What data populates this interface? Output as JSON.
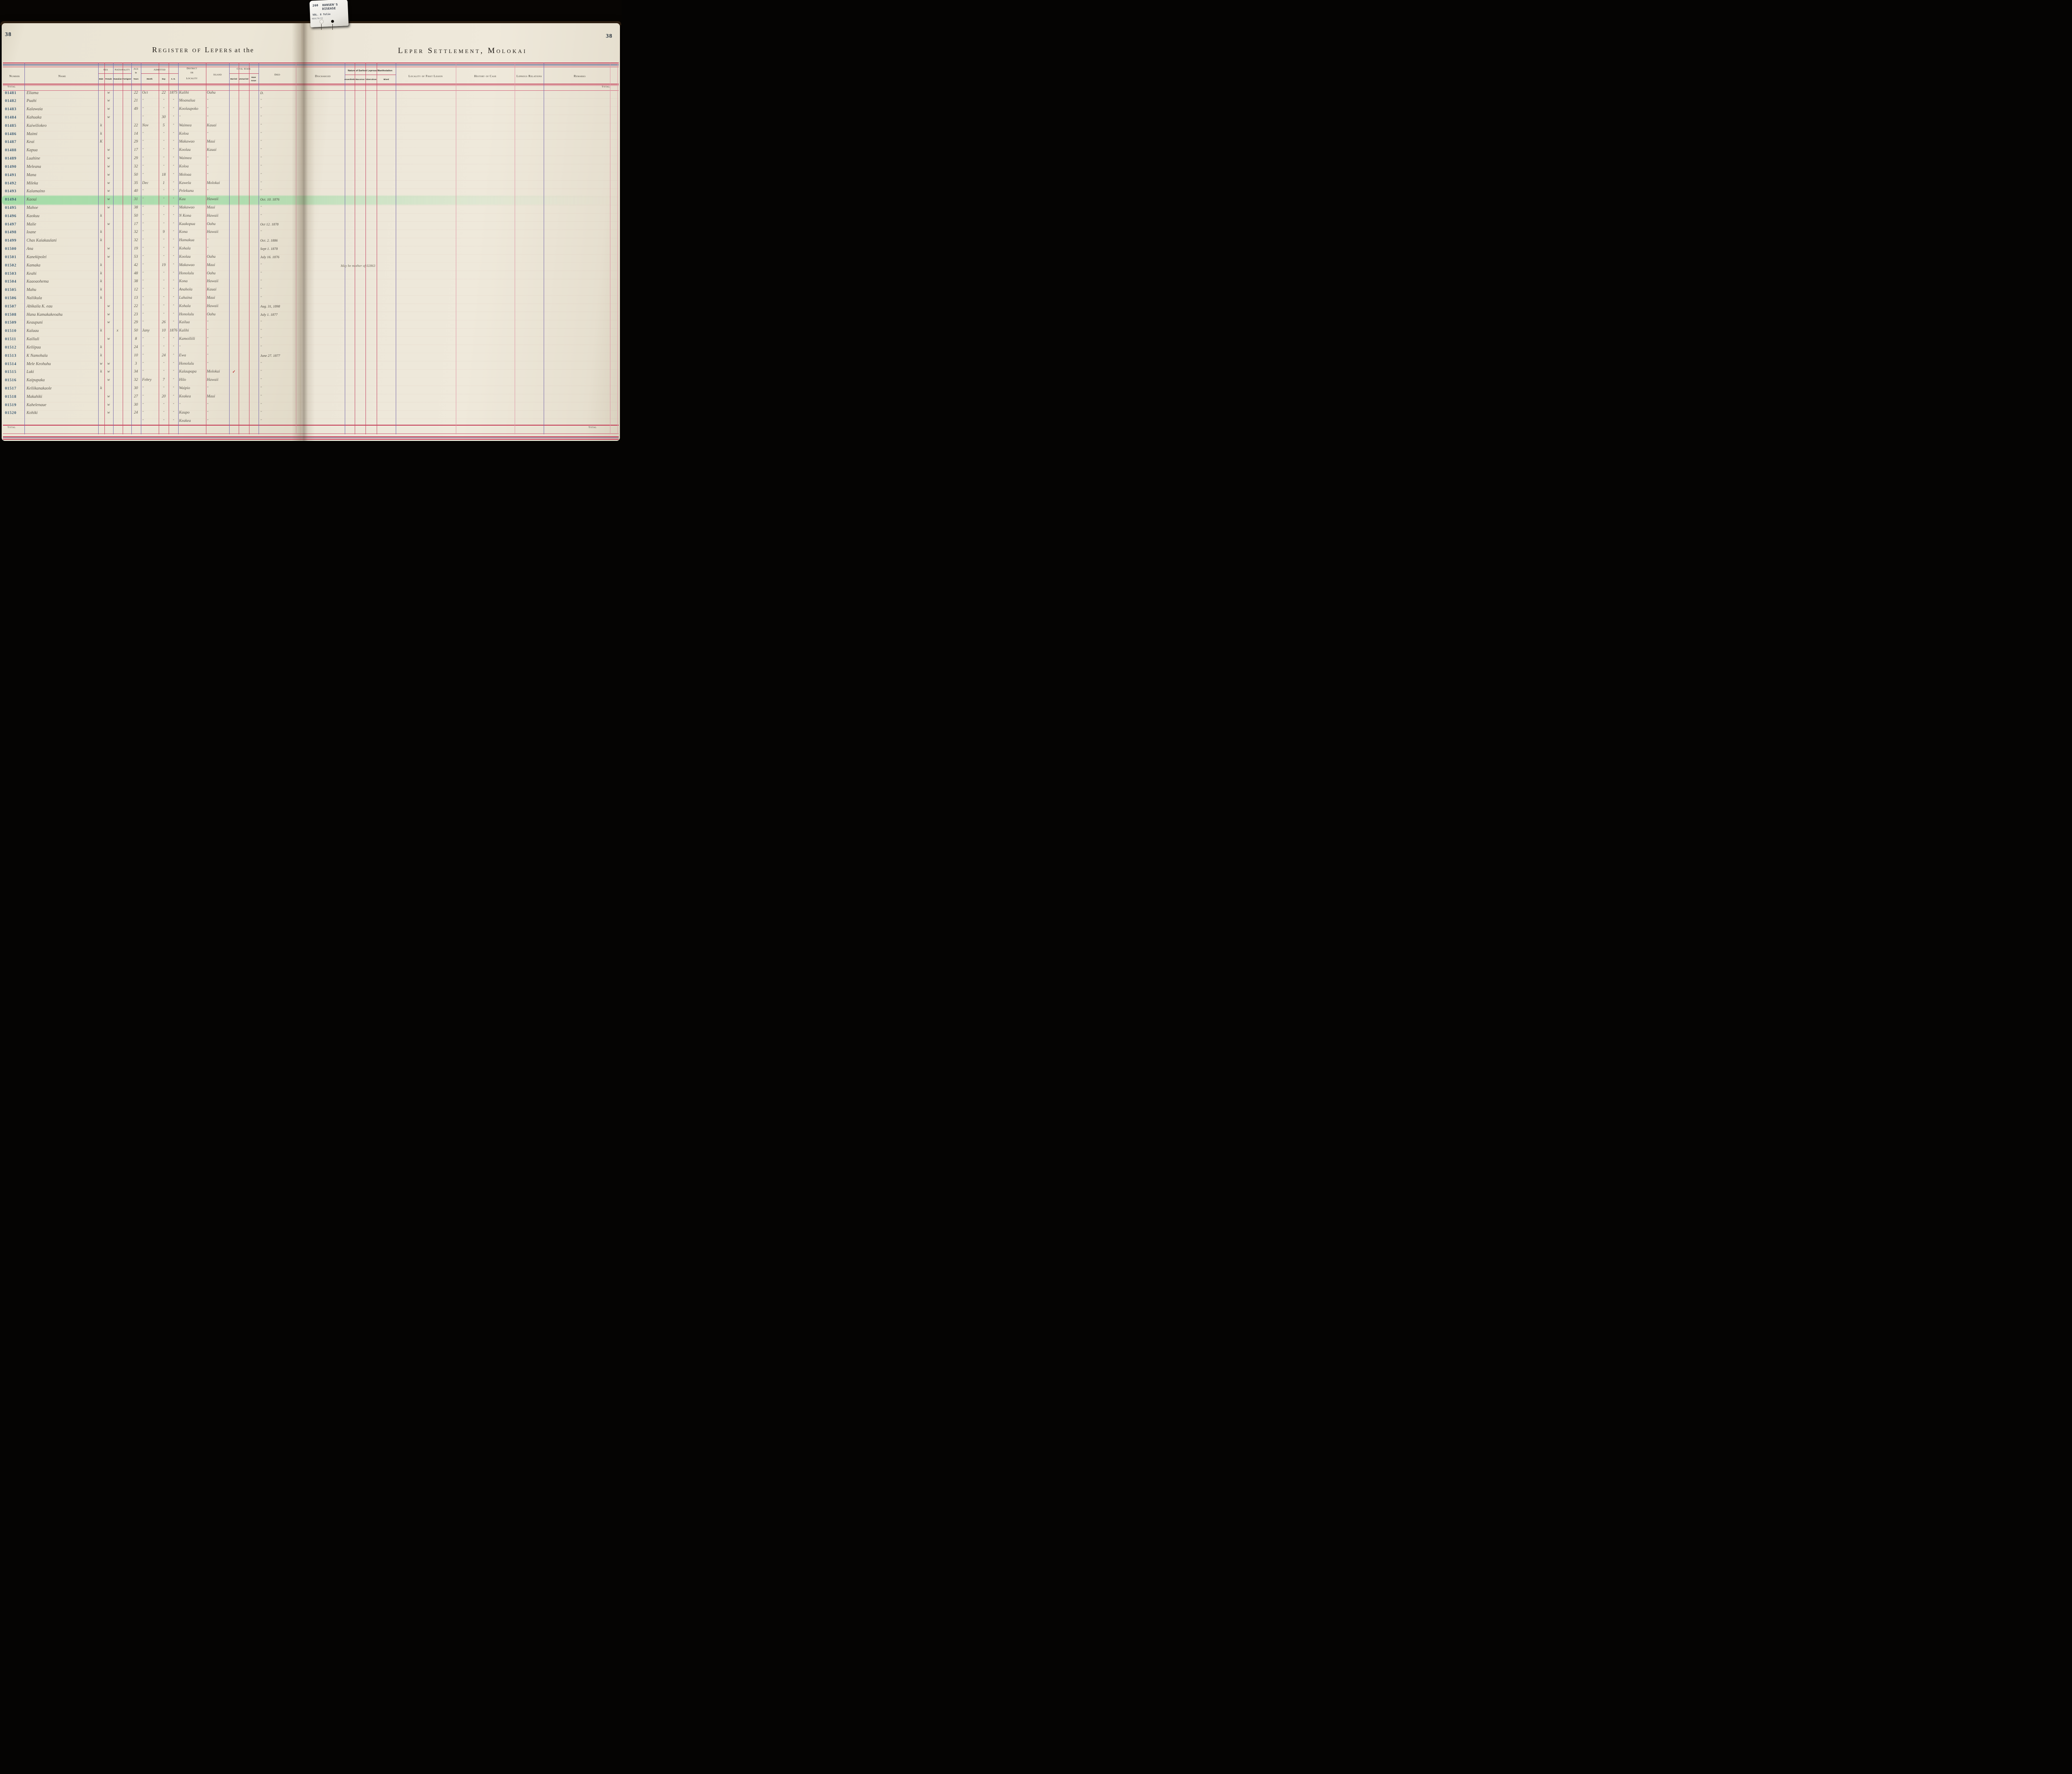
{
  "tab": {
    "code": "260",
    "label_line1": "HANSEN'S",
    "label_line2": "DISEASE",
    "volume": "VOL. 8 folio",
    "dept": "HEALTH/CC"
  },
  "left_page": {
    "page_number": "38",
    "title_main": "Register of Lepers",
    "title_suffix": "at the"
  },
  "right_page": {
    "page_number": "38",
    "title": "Leper Settlement, Molokai"
  },
  "headers": {
    "number": "Number",
    "name": "Name",
    "sex": "Sex",
    "male": "Male",
    "female": "Female",
    "nationality": "Nationality",
    "hawaiian": "Hawaiian",
    "foreigner": "Foreigner",
    "age_1": "Age",
    "age_2": "in",
    "age_3": "Years",
    "admitted": "Admitted",
    "month": "Month",
    "day": "Day",
    "ad": "A. D.",
    "district_1": "District",
    "district_2": "or",
    "district_3": "Locality",
    "island": "Island",
    "civil_state": "Civil State",
    "married": "Married",
    "unmarried": "Unmarried",
    "have_issue_1": "Have",
    "have_issue_2": "Issue",
    "died": "Died",
    "discharged": "Discharged",
    "nature": "Nature of Earliest Leprous Manifestation",
    "anaesthetic": "Anaesthetic",
    "macurous": "Macurous",
    "tuberculous": "Tuberculous",
    "mixed": "Mixed",
    "locality_first_lesion": "Locality of First Lesion",
    "history_of_case": "History of Case",
    "leprous_relations": "Leprous Relations",
    "remarks": "Remarks",
    "total": "Total"
  },
  "colors": {
    "rule_red": "#c2324f",
    "rule_purple": "#7a6dab",
    "rule_blue": "#3d3f7a",
    "stamp_ink": "#33536d",
    "pencil": "#57524a",
    "highlight_green": "#78d68c",
    "check_red": "#b52727"
  },
  "rows": [
    {
      "n": "01481",
      "name": "Eliama",
      "f": "w",
      "age": "22",
      "mo": "Oct",
      "d": "22",
      "yr": "1875",
      "loc": "Kalihi",
      "isl": "Oahu",
      "died": "D."
    },
    {
      "n": "01482",
      "name": "Puahi",
      "f": "w",
      "age": "21",
      "mo": "”",
      "d": "”",
      "yr": "”",
      "loc": "Moanalua",
      "isl": "”",
      "died": "”"
    },
    {
      "n": "01483",
      "name": "Kalawaia",
      "f": "w",
      "age": "49",
      "mo": "”",
      "d": "”",
      "yr": "”",
      "loc": "Koolaupoko",
      "isl": "”",
      "died": "”"
    },
    {
      "n": "01484",
      "name": "Kahuaka",
      "f": "w",
      "age": "",
      "mo": "”",
      "d": "30",
      "yr": "”",
      "loc": "”",
      "isl": "”",
      "died": "”"
    },
    {
      "n": "01485",
      "name": "Kaiwiliokeo",
      "m": "k",
      "age": "22",
      "mo": "Nov",
      "d": "5",
      "yr": "”",
      "loc": "Waimea",
      "isl": "Kauai",
      "died": "”"
    },
    {
      "n": "01486",
      "name": "Maimi",
      "m": "k",
      "age": "14",
      "mo": "”",
      "d": "”",
      "yr": "”",
      "loc": "Koloa",
      "isl": "”",
      "died": "”"
    },
    {
      "n": "01487",
      "name": "Keai",
      "m": "K",
      "age": "29",
      "mo": "”",
      "d": "”",
      "yr": "”",
      "loc": "Makawao",
      "isl": "Maui",
      "died": "”"
    },
    {
      "n": "01488",
      "name": "Kapua",
      "f": "w",
      "age": "17",
      "mo": "”",
      "d": "”",
      "yr": "”",
      "loc": "Koolau",
      "isl": "Kauai",
      "died": "”"
    },
    {
      "n": "01489",
      "name": "Luahine",
      "f": "w",
      "age": "29",
      "mo": "”",
      "d": "”",
      "yr": "”",
      "loc": "Waimea",
      "isl": "”",
      "died": "”"
    },
    {
      "n": "01490",
      "name": "Meleana",
      "f": "w",
      "age": "32",
      "mo": "”",
      "d": "”",
      "yr": "”",
      "loc": "Koloa",
      "isl": "”",
      "died": "”"
    },
    {
      "n": "01491",
      "name": "Mana",
      "f": "w",
      "age": "50",
      "mo": "”",
      "d": "18",
      "yr": "”",
      "loc": "Moloaa",
      "isl": "”",
      "died": "”"
    },
    {
      "n": "01492",
      "name": "Mileka",
      "f": "w",
      "age": "35",
      "mo": "Dec",
      "d": "1",
      "yr": "”",
      "loc": "Kawela",
      "isl": "Molokai",
      "died": "”"
    },
    {
      "n": "01493",
      "name": "Kalamaino",
      "f": "w",
      "age": "40",
      "mo": "”",
      "d": "”",
      "yr": "”",
      "loc": "Pelekunu",
      "isl": "”",
      "died": "”"
    },
    {
      "n": "01494",
      "name": "Kaoui",
      "f": "w",
      "age": "31",
      "mo": "”",
      "d": "”",
      "yr": "”",
      "loc": "Kau",
      "isl": "Hawaii",
      "died": "Oct. 10. 1876",
      "hl": true
    },
    {
      "n": "01495",
      "name": "Mahoe",
      "f": "w",
      "age": "38",
      "mo": "”",
      "d": "”",
      "yr": "”",
      "loc": "Makawao",
      "isl": "Maui",
      "died": "”"
    },
    {
      "n": "01496",
      "name": "Kaokuu",
      "m": "k",
      "age": "50",
      "mo": "”",
      "d": "”",
      "yr": "”",
      "loc": "N Kona",
      "isl": "Hawaii",
      "died": "”"
    },
    {
      "n": "01497",
      "name": "Malie",
      "f": "w",
      "age": "17",
      "mo": "”",
      "d": "”",
      "yr": "”",
      "loc": "Kaakopua",
      "isl": "Oahu",
      "died": "Oct 12. 1878"
    },
    {
      "n": "01498",
      "name": "Ioane",
      "m": "k",
      "age": "32",
      "mo": "”",
      "d": "9",
      "yr": "”",
      "loc": "Kona",
      "isl": "Hawaii",
      "died": "”"
    },
    {
      "n": "01499",
      "name": "Chas Kaiakaulani",
      "m": "k",
      "age": "32",
      "mo": "”",
      "d": "”",
      "yr": "”",
      "loc": "Hamakua",
      "isl": "”",
      "died": "Oct. 2. 1886"
    },
    {
      "n": "01500",
      "name": "Ana",
      "f": "w",
      "age": "19",
      "mo": "”",
      "d": "”",
      "yr": "”",
      "loc": "Kohala",
      "isl": "”",
      "died": "Sept 1. 1878"
    },
    {
      "n": "01501",
      "name": "Kanekipolei",
      "f": "w",
      "age": "53",
      "mo": "”",
      "d": "”",
      "yr": "”",
      "loc": "Koolau",
      "isl": "Oahu",
      "died": "July 16. 1876"
    },
    {
      "n": "01502",
      "name": "Kamaka",
      "m": "k",
      "age": "42",
      "mo": "”",
      "d": "19",
      "yr": "”",
      "loc": "Makawao",
      "isl": "Maui",
      "died": "”",
      "note": "May be mother of 02863"
    },
    {
      "n": "01503",
      "name": "Keahi",
      "m": "k",
      "age": "48",
      "mo": "”",
      "d": "”",
      "yr": "”",
      "loc": "Honolulu",
      "isl": "Oahu",
      "died": "”"
    },
    {
      "n": "01504",
      "name": "Kaaoaohema",
      "m": "k",
      "age": "38",
      "mo": "”",
      "d": "”",
      "yr": "”",
      "loc": "Kona",
      "isl": "Hawaii",
      "died": "”"
    },
    {
      "n": "01505",
      "name": "Mahu",
      "m": "k",
      "age": "12",
      "mo": "”",
      "d": "”",
      "yr": "”",
      "loc": "Anahola",
      "isl": "Kauai",
      "died": "”"
    },
    {
      "n": "01506",
      "name": "Naliikula",
      "m": "k",
      "age": "13",
      "mo": "”",
      "d": "”",
      "yr": "”",
      "loc": "Lahaina",
      "isl": "Maui",
      "died": "”"
    },
    {
      "n": "01507",
      "name": "Abikaila K. eau",
      "f": "w",
      "age": "22",
      "mo": "”",
      "d": "”",
      "yr": "”",
      "loc": "Kohala",
      "isl": "Hawaii",
      "died": "Aug. 31, 1898"
    },
    {
      "n": "01508",
      "name": "Hana Kamakakeoahu",
      "f": "w",
      "age": "23",
      "mo": "”",
      "d": "”",
      "yr": "”",
      "loc": "Honolulu",
      "isl": "Oahu",
      "died": "July 1. 1877"
    },
    {
      "n": "01509",
      "name": "Keaupuni",
      "f": "w",
      "age": "29",
      "mo": "”",
      "d": "26",
      "yr": "”",
      "loc": "Kailua",
      "isl": "”",
      "died": "”"
    },
    {
      "n": "01510",
      "name": "Kalaau",
      "m": "k",
      "haw": "x",
      "age": "50",
      "mo": "Jany",
      "d": "10",
      "yr": "1876",
      "loc": "Kalihi",
      "isl": "”",
      "died": "”"
    },
    {
      "n": "01511",
      "name": "Kailiuli",
      "f": "w",
      "age": "8",
      "mo": "”",
      "d": "”",
      "yr": "”",
      "loc": "Kamoiliili",
      "isl": "”",
      "died": "”"
    },
    {
      "n": "01512",
      "name": "Keliipuu",
      "m": "k",
      "age": "24",
      "mo": "”",
      "d": "”",
      "yr": "”",
      "loc": "”",
      "isl": "”",
      "died": "”"
    },
    {
      "n": "01513",
      "name": "K Namohala",
      "m": "k",
      "age": "10",
      "mo": "”",
      "d": "24",
      "yr": "”",
      "loc": "Ewa",
      "isl": "”",
      "died": "June 27. 1877"
    },
    {
      "n": "01514",
      "name": "Mele Keohuhu",
      "m": "w",
      "f": "w",
      "age": "3",
      "mo": "”",
      "d": "”",
      "yr": "”",
      "loc": "Honolulu",
      "isl": "”",
      "died": "”"
    },
    {
      "n": "01515",
      "name": "Luki",
      "m": "k",
      "f": "w",
      "age": "34",
      "mo": "”",
      "d": "”",
      "yr": "”",
      "loc": "Kalaupapa",
      "isl": "Molokai",
      "mar": "✓",
      "died": "”"
    },
    {
      "n": "01516",
      "name": "Kaipupaka",
      "f": "w",
      "age": "32",
      "mo": "Febry",
      "d": "7",
      "yr": "”",
      "loc": "Hilo",
      "isl": "Hawaii",
      "died": "”"
    },
    {
      "n": "01517",
      "name": "Keliikanakaole",
      "m": "k",
      "age": "30",
      "mo": "”",
      "d": "”",
      "yr": "”",
      "loc": "Waipio",
      "isl": "”",
      "died": "”"
    },
    {
      "n": "01518",
      "name": "Makahiki",
      "f": "w",
      "age": "27",
      "mo": "”",
      "d": "20",
      "yr": "”",
      "loc": "Keakea",
      "isl": "Maui",
      "died": "”"
    },
    {
      "n": "01519",
      "name": "Kahelenaue",
      "f": "w",
      "age": "30",
      "mo": "”",
      "d": "”",
      "yr": "”",
      "loc": "”",
      "isl": "”",
      "died": "”"
    },
    {
      "n": "01520",
      "name": "Kohiki",
      "f": "w",
      "age": "24",
      "mo": "”",
      "d": "”",
      "yr": "”",
      "loc": "Kaupo",
      "isl": "”",
      "died": "”"
    },
    {
      "n": "",
      "name": "",
      "mo": "”",
      "d": "”",
      "yr": "”",
      "loc": "Keakea",
      "isl": "”",
      "died": "”"
    }
  ]
}
